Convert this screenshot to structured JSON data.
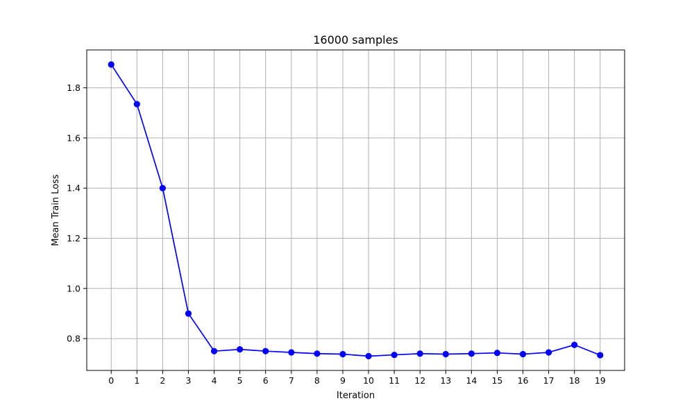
{
  "chart_data": {
    "type": "line",
    "title": "16000 samples",
    "xlabel": "Iteration",
    "ylabel": "Mean Train Loss",
    "x": [
      0,
      1,
      2,
      3,
      4,
      5,
      6,
      7,
      8,
      9,
      10,
      11,
      12,
      13,
      14,
      15,
      16,
      17,
      18,
      19
    ],
    "series": [
      {
        "name": "Mean Train Loss",
        "color": "#0000ff",
        "marker": "circle",
        "values": [
          1.893,
          1.735,
          1.4,
          0.9,
          0.75,
          0.757,
          0.75,
          0.745,
          0.74,
          0.738,
          0.73,
          0.735,
          0.74,
          0.738,
          0.74,
          0.743,
          0.738,
          0.745,
          0.775,
          0.734
        ]
      }
    ],
    "xlim": [
      -0.95,
      19.95
    ],
    "ylim": [
      0.673,
      1.951
    ],
    "xticks": [
      0,
      1,
      2,
      3,
      4,
      5,
      6,
      7,
      8,
      9,
      10,
      11,
      12,
      13,
      14,
      15,
      16,
      17,
      18,
      19
    ],
    "xtick_labels": [
      "0",
      "1",
      "2",
      "3",
      "4",
      "5",
      "6",
      "7",
      "8",
      "9",
      "10",
      "11",
      "12",
      "13",
      "14",
      "15",
      "16",
      "17",
      "18",
      "19"
    ],
    "yticks": [
      0.8,
      1.0,
      1.2,
      1.4,
      1.6,
      1.8
    ],
    "ytick_labels": [
      "0.8",
      "1.0",
      "1.2",
      "1.4",
      "1.6",
      "1.8"
    ],
    "grid": true,
    "colors": {
      "grid": "#b0b0b0",
      "axes": "#000000",
      "background": "#ffffff"
    }
  }
}
